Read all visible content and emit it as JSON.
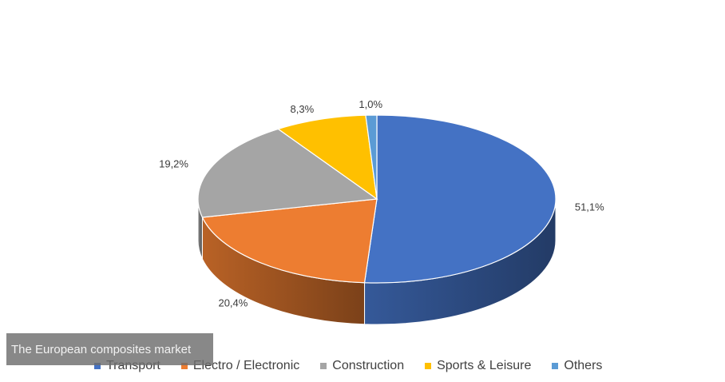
{
  "chart_data": {
    "type": "pie",
    "style": "3d",
    "categories": [
      "Transport",
      "Electro / Electronic",
      "Construction",
      "Sports & Leisure",
      "Others"
    ],
    "values": [
      51.1,
      20.4,
      19.2,
      8.3,
      1.0
    ],
    "data_labels": [
      "51,1%",
      "20,4%",
      "19,2%",
      "8,3%",
      "1,0%"
    ],
    "colors": [
      "#4472C4",
      "#ED7D31",
      "#A5A5A5",
      "#FFC000",
      "#5B9BD5"
    ],
    "legend_position": "bottom"
  },
  "caption": "The European composites market"
}
